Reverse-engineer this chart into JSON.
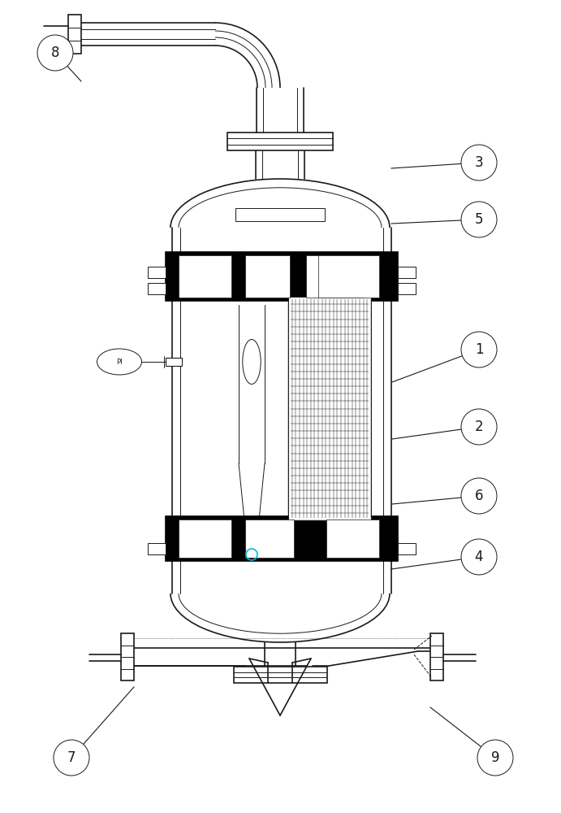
{
  "bg_color": "#ffffff",
  "line_color": "#1a1a1a",
  "cyan_color": "#00bcd4",
  "figsize": [
    6.91,
    10.0
  ],
  "dpi": 100
}
